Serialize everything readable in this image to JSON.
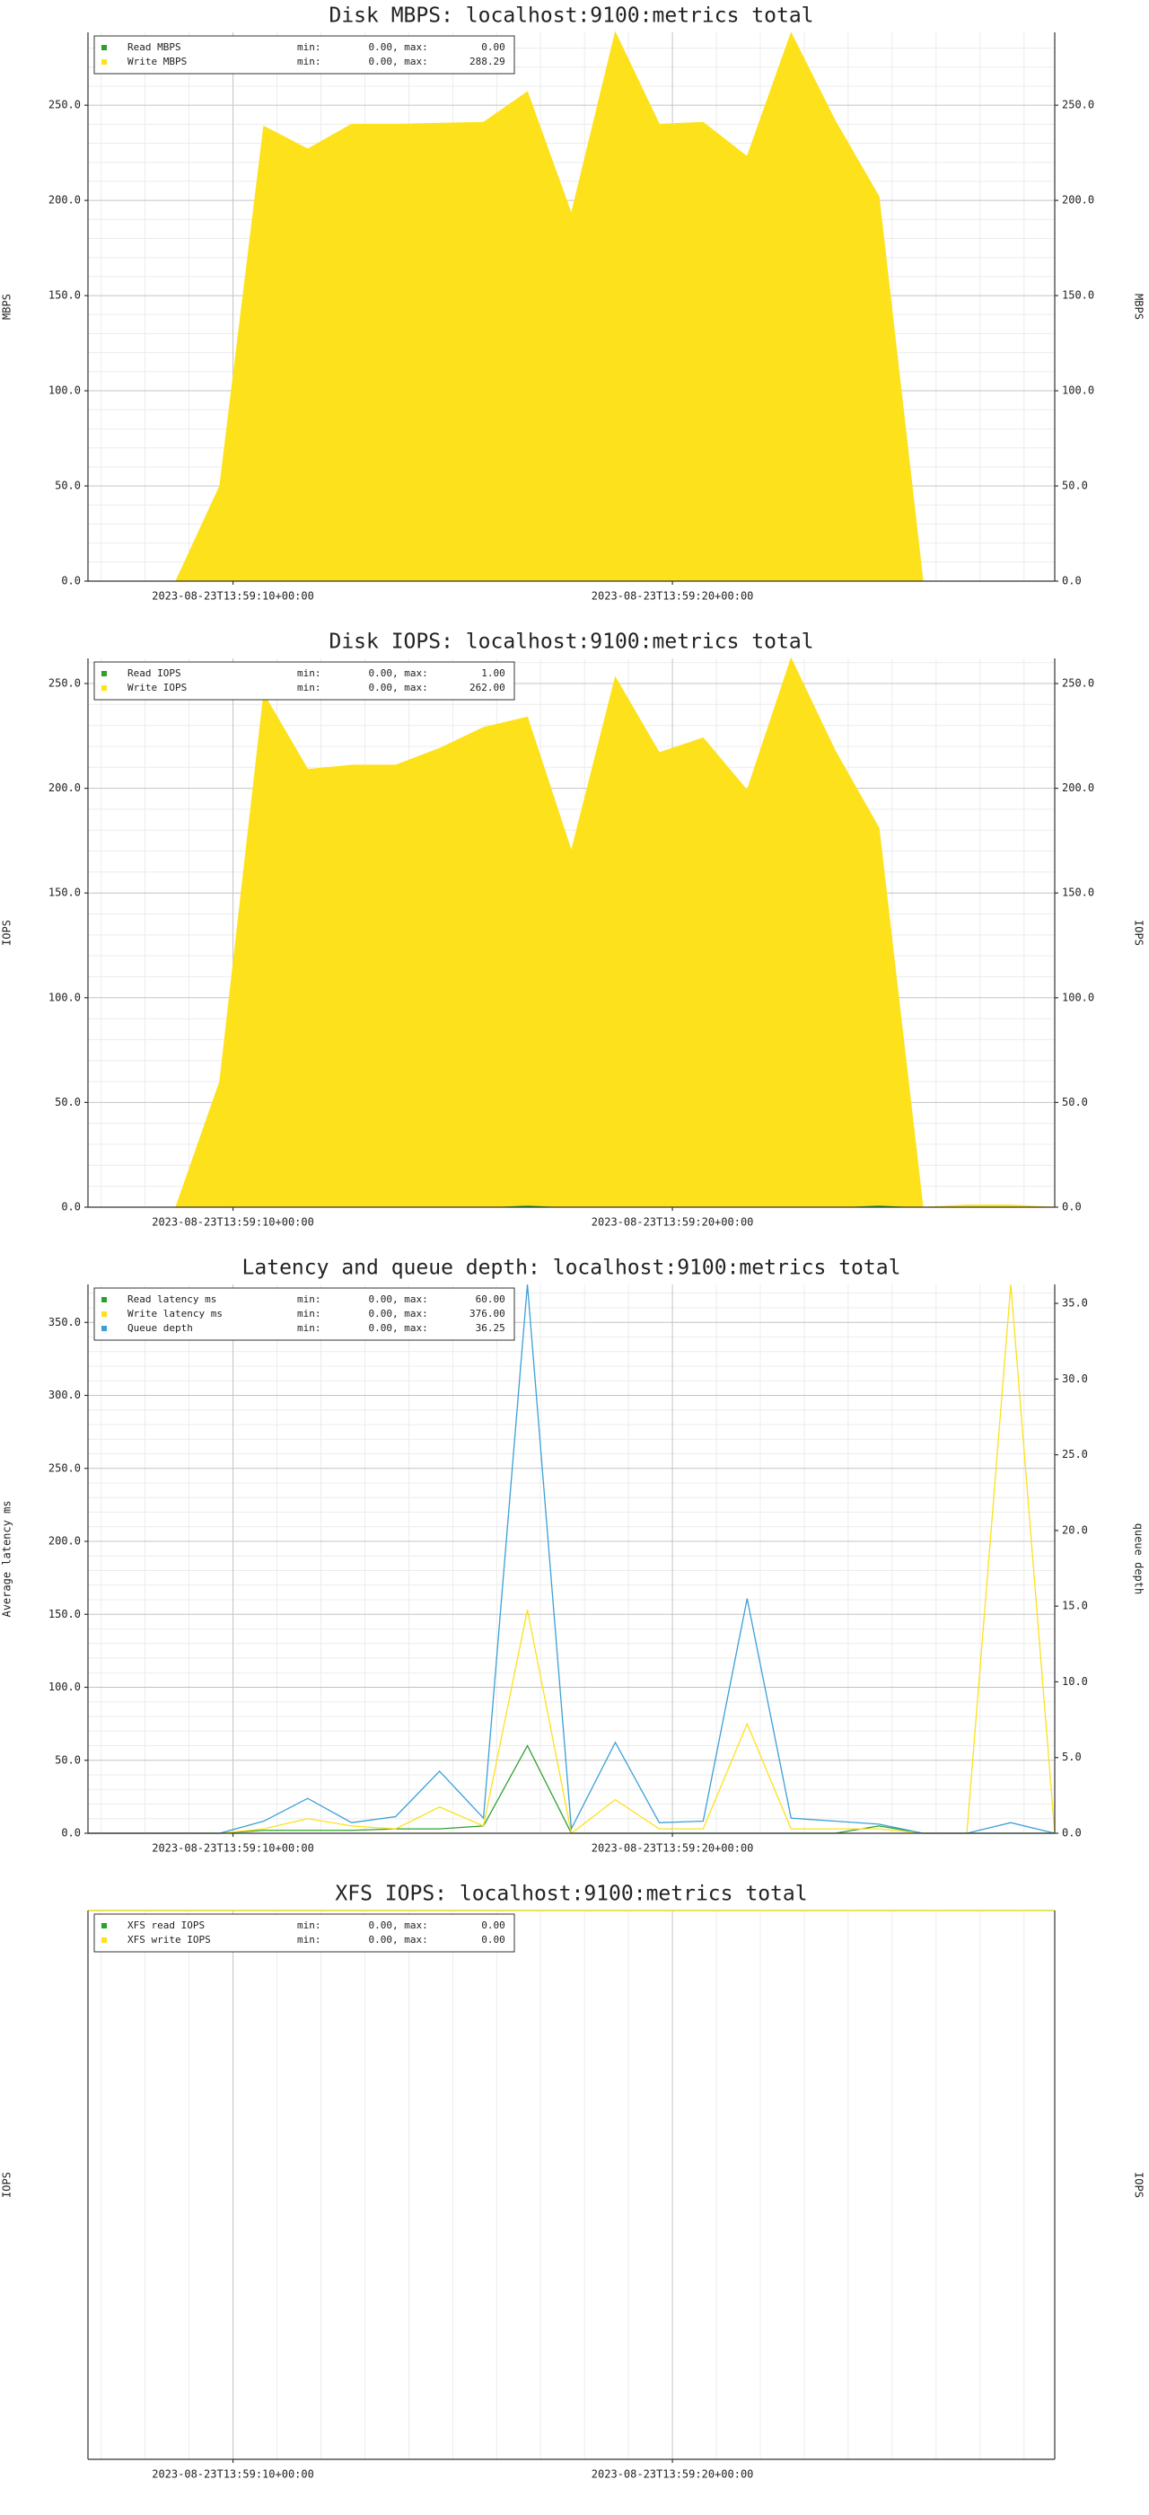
{
  "chart_data": [
    {
      "type": "area",
      "title": "Disk MBPS: localhost:9100:metrics total",
      "ylabel": "MBPS",
      "mirror_axis": true,
      "x": [
        6.7,
        7.7,
        8.7,
        9.7,
        10.7,
        11.7,
        12.7,
        13.7,
        14.7,
        15.7,
        16.7,
        17.7,
        18.7,
        19.7,
        20.7,
        21.7,
        22.7,
        23.7,
        24.7,
        25.7,
        26.7,
        27.7,
        28.7
      ],
      "xlim": [
        6.7,
        28.7
      ],
      "xticks": [
        {
          "value": 10,
          "label": "2023-08-23T13:59:10+00:00"
        },
        {
          "value": 20,
          "label": "2023-08-23T13:59:20+00:00"
        }
      ],
      "x_minor_ticks": [
        7,
        8,
        9,
        11,
        12,
        13,
        14,
        15,
        16,
        17,
        18,
        19,
        21,
        22,
        23,
        24,
        25,
        26,
        27,
        28
      ],
      "ylim": [
        0,
        288.29
      ],
      "yticks": [
        {
          "value": 0,
          "label": "0.0"
        },
        {
          "value": 50,
          "label": "50.0"
        },
        {
          "value": 100,
          "label": "100.0"
        },
        {
          "value": 150,
          "label": "150.0"
        },
        {
          "value": 200,
          "label": "200.0"
        },
        {
          "value": 250,
          "label": "250.0"
        }
      ],
      "y_minor_ticks": [
        10,
        20,
        30,
        40,
        60,
        70,
        80,
        90,
        110,
        120,
        130,
        140,
        160,
        170,
        180,
        190,
        210,
        220,
        230,
        240,
        260,
        270,
        280
      ],
      "series": [
        {
          "name": "Read MBPS",
          "color": "#2ca02c",
          "stats": "min:        0.00, max:         0.00",
          "values": [
            0,
            0,
            0,
            0,
            0,
            0,
            0,
            0,
            0,
            0,
            0,
            0,
            0,
            0,
            0,
            0,
            0,
            0,
            0,
            0,
            0,
            0,
            0
          ]
        },
        {
          "name": "Write MBPS",
          "color": "#fde11a",
          "stats": "min:        0.00, max:       288.29",
          "values": [
            0,
            0,
            0,
            50,
            239,
            227,
            240,
            240,
            240.5,
            241,
            257,
            193,
            288.29,
            240,
            241,
            223,
            288,
            242,
            202,
            0,
            0,
            0,
            0
          ]
        }
      ]
    },
    {
      "type": "area",
      "title": "Disk IOPS: localhost:9100:metrics total",
      "ylabel": "IOPS",
      "mirror_axis": true,
      "x": [
        6.7,
        7.7,
        8.7,
        9.7,
        10.7,
        11.7,
        12.7,
        13.7,
        14.7,
        15.7,
        16.7,
        17.7,
        18.7,
        19.7,
        20.7,
        21.7,
        22.7,
        23.7,
        24.7,
        25.7,
        26.7,
        27.7,
        28.7
      ],
      "xlim": [
        6.7,
        28.7
      ],
      "xticks": [
        {
          "value": 10,
          "label": "2023-08-23T13:59:10+00:00"
        },
        {
          "value": 20,
          "label": "2023-08-23T13:59:20+00:00"
        }
      ],
      "x_minor_ticks": [
        7,
        8,
        9,
        11,
        12,
        13,
        14,
        15,
        16,
        17,
        18,
        19,
        21,
        22,
        23,
        24,
        25,
        26,
        27,
        28
      ],
      "ylim": [
        0,
        262
      ],
      "yticks": [
        {
          "value": 0,
          "label": "0.0"
        },
        {
          "value": 50,
          "label": "50.0"
        },
        {
          "value": 100,
          "label": "100.0"
        },
        {
          "value": 150,
          "label": "150.0"
        },
        {
          "value": 200,
          "label": "200.0"
        },
        {
          "value": 250,
          "label": "250.0"
        }
      ],
      "y_minor_ticks": [
        10,
        20,
        30,
        40,
        60,
        70,
        80,
        90,
        110,
        120,
        130,
        140,
        160,
        170,
        180,
        190,
        210,
        220,
        230,
        240,
        260
      ],
      "series": [
        {
          "name": "Read IOPS",
          "color": "#2ca02c",
          "stats": "min:        0.00, max:         1.00",
          "values": [
            0,
            0,
            0,
            0,
            0,
            0,
            0,
            0,
            0,
            0,
            1,
            0,
            0,
            0,
            0,
            0,
            0,
            0,
            1,
            0,
            0,
            0,
            0
          ]
        },
        {
          "name": "Write IOPS",
          "color": "#fde11a",
          "stats": "min:        0.00, max:       262.00",
          "values": [
            0,
            0,
            0,
            60,
            245,
            209,
            211,
            211,
            219,
            229,
            233,
            170,
            253,
            217,
            224,
            199,
            262,
            218,
            180,
            0,
            1,
            1,
            0
          ]
        }
      ]
    },
    {
      "type": "line",
      "title": "Latency and queue depth: localhost:9100:metrics total",
      "ylabel": "Average latency ms",
      "y2label": "queue depth",
      "x": [
        6.7,
        7.7,
        8.7,
        9.7,
        10.7,
        11.7,
        12.7,
        13.7,
        14.7,
        15.7,
        16.7,
        17.7,
        18.7,
        19.7,
        20.7,
        21.7,
        22.7,
        23.7,
        24.7,
        25.7,
        26.7,
        27.7,
        28.7
      ],
      "xlim": [
        6.7,
        28.7
      ],
      "xticks": [
        {
          "value": 10,
          "label": "2023-08-23T13:59:10+00:00"
        },
        {
          "value": 20,
          "label": "2023-08-23T13:59:20+00:00"
        }
      ],
      "x_minor_ticks": [
        7,
        8,
        9,
        11,
        12,
        13,
        14,
        15,
        16,
        17,
        18,
        19,
        21,
        22,
        23,
        24,
        25,
        26,
        27,
        28
      ],
      "ylim": [
        0,
        376
      ],
      "yticks": [
        {
          "value": 0,
          "label": "0.0"
        },
        {
          "value": 50,
          "label": "50.0"
        },
        {
          "value": 100,
          "label": "100.0"
        },
        {
          "value": 150,
          "label": "150.0"
        },
        {
          "value": 200,
          "label": "200.0"
        },
        {
          "value": 250,
          "label": "250.0"
        },
        {
          "value": 300,
          "label": "300.0"
        },
        {
          "value": 350,
          "label": "350.0"
        }
      ],
      "y_minor_ticks": [
        10,
        20,
        30,
        40,
        60,
        70,
        80,
        90,
        110,
        120,
        130,
        140,
        160,
        170,
        180,
        190,
        210,
        220,
        230,
        240,
        260,
        270,
        280,
        290,
        310,
        320,
        330,
        340,
        360,
        370
      ],
      "y2lim": [
        0,
        36.25
      ],
      "y2ticks": [
        {
          "value": 0,
          "label": "0.0"
        },
        {
          "value": 5,
          "label": "5.0"
        },
        {
          "value": 10,
          "label": "10.0"
        },
        {
          "value": 15,
          "label": "15.0"
        },
        {
          "value": 20,
          "label": "20.0"
        },
        {
          "value": 25,
          "label": "25.0"
        },
        {
          "value": 30,
          "label": "30.0"
        },
        {
          "value": 35,
          "label": "35.0"
        }
      ],
      "series": [
        {
          "name": "Read latency ms",
          "color": "#2ca02c",
          "stats": "min:        0.00, max:        60.00",
          "values": [
            0,
            0,
            0,
            0,
            2,
            2,
            2,
            3,
            3,
            5,
            60,
            0,
            0,
            0,
            0,
            0,
            0,
            0,
            5,
            0,
            0,
            0,
            0
          ]
        },
        {
          "name": "Write latency ms",
          "color": "#fde11a",
          "stats": "min:        0.00, max:       376.00",
          "values": [
            0,
            0,
            0,
            0,
            3,
            10,
            5,
            3,
            18,
            5,
            153,
            0,
            23,
            3,
            3,
            75,
            3,
            3,
            3,
            0,
            0,
            376,
            0
          ]
        },
        {
          "name": "Queue depth",
          "color": "#3b9fd8",
          "axis": "y2",
          "stats": "min:        0.00, max:        36.25",
          "values": [
            0,
            0,
            0,
            0,
            0.8,
            2.3,
            0.7,
            1.1,
            4.1,
            1,
            36.25,
            0.3,
            6,
            0.7,
            0.8,
            15.5,
            1,
            0.8,
            0.6,
            0,
            0,
            0.7,
            0
          ]
        }
      ]
    },
    {
      "type": "line",
      "title": "XFS IOPS: localhost:9100:metrics total",
      "ylabel": "IOPS",
      "mirror_axis": true,
      "x": [
        6.7,
        7.7,
        8.7,
        9.7,
        10.7,
        11.7,
        12.7,
        13.7,
        14.7,
        15.7,
        16.7,
        17.7,
        18.7,
        19.7,
        20.7,
        21.7,
        22.7,
        23.7,
        24.7,
        25.7,
        26.7,
        27.7,
        28.7
      ],
      "xlim": [
        6.7,
        28.7
      ],
      "xticks": [
        {
          "value": 10,
          "label": "2023-08-23T13:59:10+00:00"
        },
        {
          "value": 20,
          "label": "2023-08-23T13:59:20+00:00"
        }
      ],
      "x_minor_ticks": [
        7,
        8,
        9,
        11,
        12,
        13,
        14,
        15,
        16,
        17,
        18,
        19,
        21,
        22,
        23,
        24,
        25,
        26,
        27,
        28
      ],
      "ylim": [
        -1,
        0
      ],
      "yticks": [],
      "series": [
        {
          "name": "XFS read IOPS",
          "color": "#2ca02c",
          "stats": "min:        0.00, max:         0.00",
          "values": [
            0,
            0,
            0,
            0,
            0,
            0,
            0,
            0,
            0,
            0,
            0,
            0,
            0,
            0,
            0,
            0,
            0,
            0,
            0,
            0,
            0,
            0,
            0
          ]
        },
        {
          "name": "XFS write IOPS",
          "color": "#fde11a",
          "stats": "min:        0.00, max:         0.00",
          "values": [
            0,
            0,
            0,
            0,
            0,
            0,
            0,
            0,
            0,
            0,
            0,
            0,
            0,
            0,
            0,
            0,
            0,
            0,
            0,
            0,
            0,
            0,
            0
          ]
        }
      ]
    }
  ]
}
